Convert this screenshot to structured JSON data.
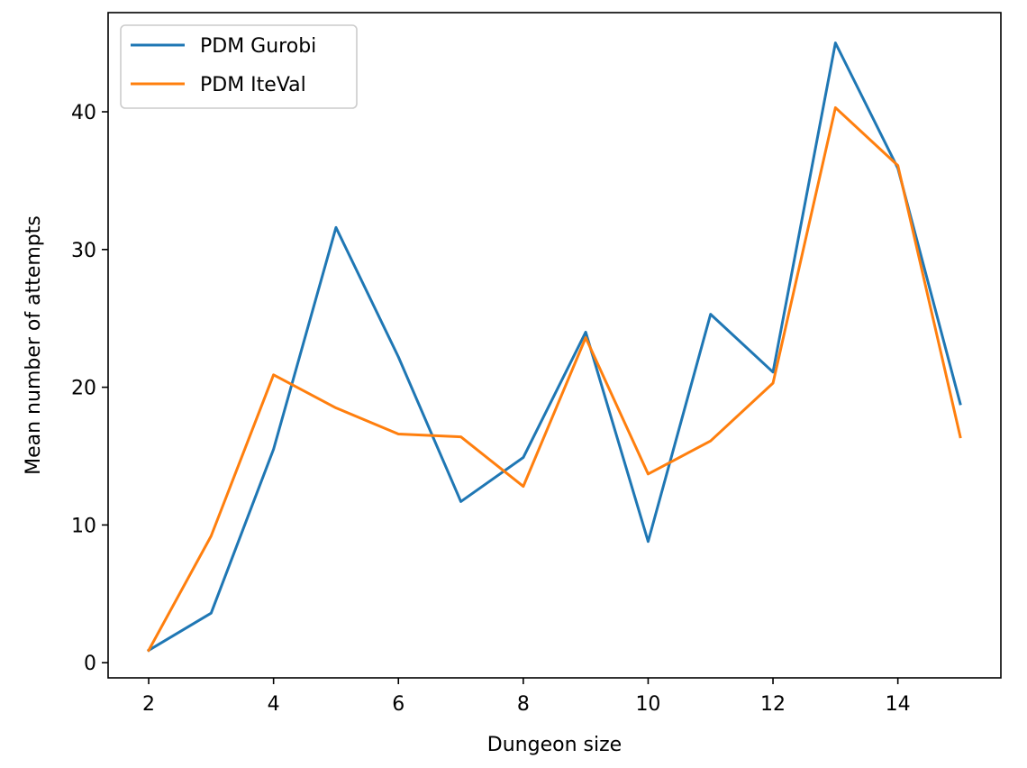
{
  "chart_data": {
    "type": "line",
    "title": "",
    "xlabel": "Dungeon size",
    "ylabel": "Mean number of attempts",
    "x": [
      2,
      3,
      4,
      5,
      6,
      7,
      8,
      9,
      10,
      11,
      12,
      13,
      14,
      15
    ],
    "series": [
      {
        "name": "PDM Gurobi",
        "color": "#1f77b4",
        "values": [
          0.9,
          3.6,
          15.5,
          31.6,
          22.2,
          11.7,
          14.9,
          24.0,
          8.8,
          25.3,
          21.1,
          45.0,
          35.9,
          18.8
        ]
      },
      {
        "name": "PDM IteVal",
        "color": "#ff7f0e",
        "values": [
          0.9,
          9.2,
          20.9,
          18.5,
          16.6,
          16.4,
          12.8,
          23.6,
          13.7,
          16.1,
          20.3,
          40.3,
          36.1,
          16.4
        ]
      }
    ],
    "xlim": [
      1.35,
      15.65
    ],
    "ylim": [
      -1.1,
      47.2
    ],
    "xticks": [
      2,
      4,
      6,
      8,
      10,
      12,
      14
    ],
    "yticks": [
      0,
      10,
      20,
      30,
      40
    ],
    "grid": false,
    "legend_position": "upper left"
  }
}
